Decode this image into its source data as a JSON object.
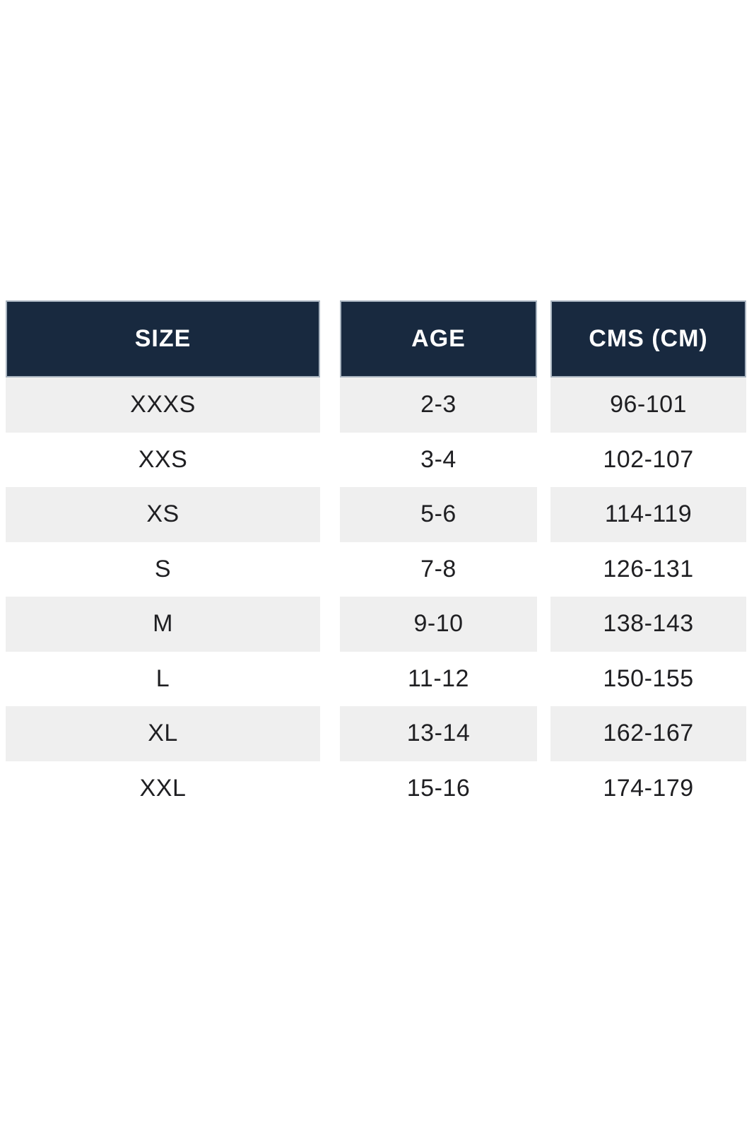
{
  "chart_data": {
    "type": "table",
    "columns": [
      "SIZE",
      "AGE",
      "CMS (CM)"
    ],
    "rows": [
      [
        "XXXS",
        "2-3",
        "96-101"
      ],
      [
        "XXS",
        "3-4",
        "102-107"
      ],
      [
        "XS",
        "5-6",
        "114-119"
      ],
      [
        "S",
        "7-8",
        "126-131"
      ],
      [
        "M",
        "9-10",
        "138-143"
      ],
      [
        "L",
        "11-12",
        "150-155"
      ],
      [
        "XL",
        "13-14",
        "162-167"
      ],
      [
        "XXL",
        "15-16",
        "174-179"
      ]
    ],
    "layout": {
      "header_bg": "#18293f",
      "header_text_color": "#ffffff",
      "alt_row_bg": "#efefef",
      "row_bg": "#ffffff",
      "body_text_color": "#1f1f22",
      "zebra": "first data row shaded, then alternating"
    }
  }
}
